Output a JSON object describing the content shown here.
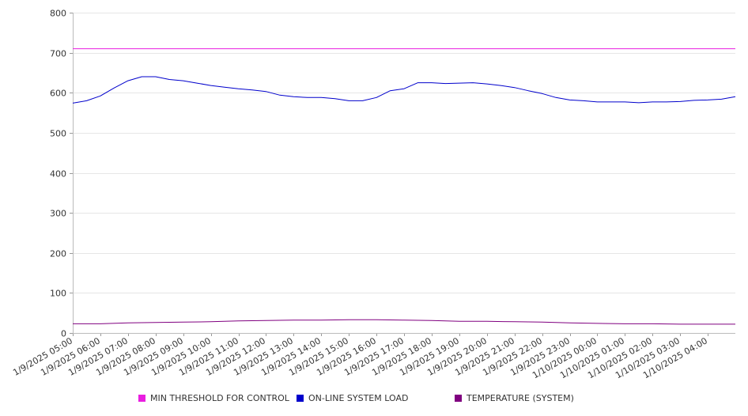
{
  "chart_data": {
    "type": "line",
    "y_ticks": [
      "0",
      "100",
      "200",
      "300",
      "400",
      "500",
      "600",
      "700",
      "800"
    ],
    "ylim": [
      0,
      800
    ],
    "grid": "horizontal",
    "legend_placement": "bottom",
    "x_categories": [
      "1/9/2025 05:00",
      "1/9/2025 06:00",
      "1/9/2025 07:00",
      "1/9/2025 08:00",
      "1/9/2025 09:00",
      "1/9/2025 10:00",
      "1/9/2025 11:00",
      "1/9/2025 12:00",
      "1/9/2025 13:00",
      "1/9/2025 14:00",
      "1/9/2025 15:00",
      "1/9/2025 16:00",
      "1/9/2025 17:00",
      "1/9/2025 18:00",
      "1/9/2025 19:00",
      "1/9/2025 20:00",
      "1/9/2025 21:00",
      "1/9/2025 22:00",
      "1/9/2025 23:00",
      "1/10/2025 00:00",
      "1/10/2025 01:00",
      "1/10/2025 02:00",
      "1/10/2025 03:00",
      "1/10/2025 04:00"
    ],
    "series": [
      {
        "name": "MIN THRESHOLD FOR CONTROL",
        "color": "#e91ee0",
        "x": [
          "1/9/2025 05:00",
          "1/10/2025 05:00"
        ],
        "values": [
          710,
          710
        ]
      },
      {
        "name": "ON-LINE SYSTEM LOAD",
        "color": "#0000cc",
        "x": [
          "1/9/2025 05:00",
          "1/9/2025 05:30",
          "1/9/2025 06:00",
          "1/9/2025 06:30",
          "1/9/2025 07:00",
          "1/9/2025 07:30",
          "1/9/2025 08:00",
          "1/9/2025 08:30",
          "1/9/2025 09:00",
          "1/9/2025 09:30",
          "1/9/2025 10:00",
          "1/9/2025 10:30",
          "1/9/2025 11:00",
          "1/9/2025 11:30",
          "1/9/2025 12:00",
          "1/9/2025 12:30",
          "1/9/2025 13:00",
          "1/9/2025 13:30",
          "1/9/2025 14:00",
          "1/9/2025 14:30",
          "1/9/2025 15:00",
          "1/9/2025 15:30",
          "1/9/2025 16:00",
          "1/9/2025 16:30",
          "1/9/2025 17:00",
          "1/9/2025 17:30",
          "1/9/2025 18:00",
          "1/9/2025 18:30",
          "1/9/2025 19:00",
          "1/9/2025 19:30",
          "1/9/2025 20:00",
          "1/9/2025 20:30",
          "1/9/2025 21:00",
          "1/9/2025 21:30",
          "1/9/2025 22:00",
          "1/9/2025 22:30",
          "1/9/2025 23:00",
          "1/9/2025 23:30",
          "1/10/2025 00:00",
          "1/10/2025 00:30",
          "1/10/2025 01:00",
          "1/10/2025 01:30",
          "1/10/2025 02:00",
          "1/10/2025 02:30",
          "1/10/2025 03:00",
          "1/10/2025 03:30",
          "1/10/2025 04:00",
          "1/10/2025 04:30",
          "1/10/2025 05:00"
        ],
        "values": [
          574,
          580,
          592,
          612,
          630,
          640,
          640,
          633,
          630,
          624,
          618,
          614,
          610,
          607,
          603,
          594,
          590,
          588,
          588,
          585,
          580,
          580,
          588,
          605,
          610,
          625,
          625,
          623,
          624,
          625,
          622,
          618,
          613,
          605,
          598,
          588,
          582,
          580,
          577,
          577,
          577,
          575,
          577,
          577,
          578,
          581,
          582,
          584,
          590
        ]
      },
      {
        "name": "TEMPERATURE (SYSTEM)",
        "color": "#800080",
        "x": [
          "1/9/2025 05:00",
          "1/9/2025 06:00",
          "1/9/2025 07:00",
          "1/9/2025 08:00",
          "1/9/2025 09:00",
          "1/9/2025 10:00",
          "1/9/2025 11:00",
          "1/9/2025 12:00",
          "1/9/2025 13:00",
          "1/9/2025 14:00",
          "1/9/2025 15:00",
          "1/9/2025 16:00",
          "1/9/2025 17:00",
          "1/9/2025 18:00",
          "1/9/2025 19:00",
          "1/9/2025 20:00",
          "1/9/2025 21:00",
          "1/9/2025 22:00",
          "1/9/2025 23:00",
          "1/10/2025 00:00",
          "1/10/2025 01:00",
          "1/10/2025 02:00",
          "1/10/2025 03:00",
          "1/10/2025 04:00",
          "1/10/2025 05:00"
        ],
        "values": [
          23,
          23,
          25,
          26,
          27,
          28,
          30,
          31,
          32,
          32,
          33,
          33,
          32,
          31,
          29,
          29,
          28,
          27,
          25,
          24,
          23,
          23,
          22,
          22,
          22
        ]
      }
    ],
    "legend": [
      {
        "label": "MIN THRESHOLD FOR CONTROL",
        "color": "#e91ee0"
      },
      {
        "label": "ON-LINE SYSTEM LOAD",
        "color": "#0000cc"
      },
      {
        "label": "TEMPERATURE (SYSTEM)",
        "color": "#800080"
      }
    ]
  }
}
